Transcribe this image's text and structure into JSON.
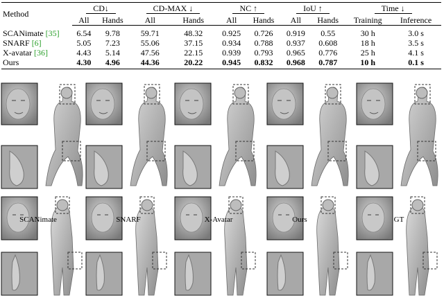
{
  "table": {
    "method_header": "Method",
    "groups": [
      {
        "label": "CD↓",
        "subs": [
          "All",
          "Hands"
        ]
      },
      {
        "label": "CD-MAX ↓",
        "subs": [
          "All",
          "Hands"
        ]
      },
      {
        "label": "NC ↑",
        "subs": [
          "All",
          "Hands"
        ]
      },
      {
        "label": "IoU ↑",
        "subs": [
          "All",
          "Hands"
        ]
      },
      {
        "label": "Time ↓",
        "subs": [
          "Training",
          "Inference"
        ]
      }
    ],
    "rows": [
      {
        "name": "SCANimate ",
        "cite": "[35]",
        "cells": [
          "6.54",
          "9.78",
          "59.71",
          "48.32",
          "0.925",
          "0.726",
          "0.919",
          "0.55",
          "30 h",
          "3.0 s"
        ],
        "bold": false
      },
      {
        "name": "SNARF ",
        "cite": "[6]",
        "cells": [
          "5.05",
          "7.23",
          "55.06",
          "37.15",
          "0.934",
          "0.788",
          "0.937",
          "0.608",
          "18 h",
          "3.5 s"
        ],
        "bold": false
      },
      {
        "name": "X-avatar ",
        "cite": "[36]",
        "cells": [
          "4.43",
          "5.14",
          "47.56",
          "22.15",
          "0.939",
          "0.793",
          "0.965",
          "0.776",
          "25 h",
          "4.1 s"
        ],
        "bold": false
      },
      {
        "name": "Ours",
        "cite": "",
        "cells": [
          "4.30",
          "4.96",
          "44.36",
          "20.22",
          "0.945",
          "0.832",
          "0.968",
          "0.787",
          "10 h",
          "0.1 s"
        ],
        "bold": true
      }
    ]
  },
  "captions": [
    "SCANimate",
    "SNARF",
    "X-Avatar",
    "Ours",
    "GT"
  ]
}
